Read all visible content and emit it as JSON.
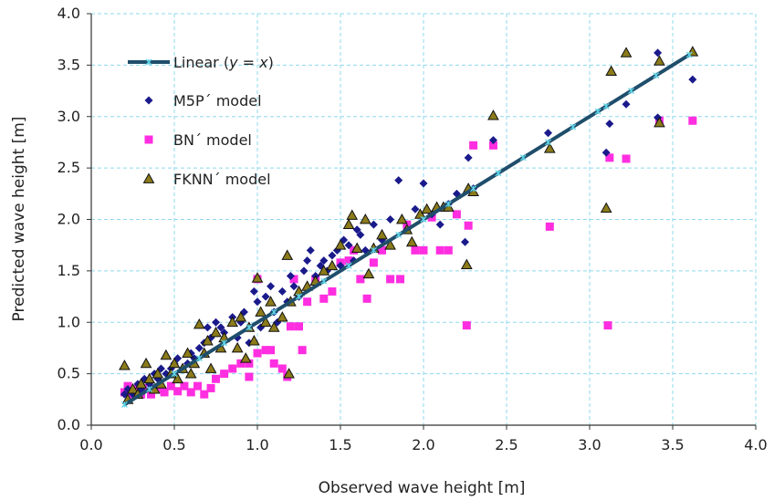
{
  "chart_data": {
    "type": "scatter",
    "title": "",
    "xlabel": "Observed wave height [m]",
    "ylabel": "Predicted wave height [m]",
    "xlim": [
      0.0,
      4.0
    ],
    "ylim": [
      0.0,
      4.0
    ],
    "x_ticks": [
      "0.0",
      "0.5",
      "1.0",
      "1.5",
      "2.0",
      "2.5",
      "3.0",
      "3.5",
      "4.0"
    ],
    "y_ticks": [
      "0.0",
      "0.5",
      "1.0",
      "1.5",
      "2.0",
      "2.5",
      "3.0",
      "3.5",
      "4.0"
    ],
    "grid": true,
    "legend_position": "top-left",
    "series": [
      {
        "name": "Linear (y = x)",
        "name_prefix": "Linear (",
        "name_math": "y = x",
        "name_suffix": ")",
        "kind": "line",
        "color": "#1f4e6b",
        "marker_color": "#5fd3e6",
        "x": [
          0.2,
          3.6
        ],
        "y": [
          0.2,
          3.6
        ],
        "marker_x": [
          0.2,
          0.35,
          0.5,
          0.65,
          0.8,
          0.95,
          1.1,
          1.25,
          1.4,
          1.55,
          1.7,
          1.85,
          2.0,
          2.15,
          2.3,
          2.45,
          2.6,
          2.75,
          2.9,
          3.05,
          3.1,
          3.25,
          3.4,
          3.6
        ]
      },
      {
        "name": "M5P´ model",
        "kind": "scatter",
        "marker": "diamond",
        "color": "#1a1a8c",
        "points": [
          [
            0.2,
            0.3
          ],
          [
            0.22,
            0.35
          ],
          [
            0.25,
            0.3
          ],
          [
            0.28,
            0.4
          ],
          [
            0.3,
            0.35
          ],
          [
            0.32,
            0.45
          ],
          [
            0.35,
            0.4
          ],
          [
            0.38,
            0.5
          ],
          [
            0.4,
            0.45
          ],
          [
            0.42,
            0.55
          ],
          [
            0.45,
            0.5
          ],
          [
            0.48,
            0.55
          ],
          [
            0.5,
            0.6
          ],
          [
            0.52,
            0.65
          ],
          [
            0.55,
            0.55
          ],
          [
            0.58,
            0.6
          ],
          [
            0.6,
            0.7
          ],
          [
            0.62,
            0.65
          ],
          [
            0.65,
            0.75
          ],
          [
            0.68,
            0.8
          ],
          [
            0.7,
            0.95
          ],
          [
            0.72,
            0.85
          ],
          [
            0.75,
            1.0
          ],
          [
            0.78,
            0.95
          ],
          [
            0.8,
            0.9
          ],
          [
            0.85,
            1.05
          ],
          [
            0.88,
            0.85
          ],
          [
            0.9,
            1.0
          ],
          [
            0.92,
            1.1
          ],
          [
            0.95,
            0.8
          ],
          [
            0.98,
            1.3
          ],
          [
            1.0,
            1.2
          ],
          [
            1.02,
            0.95
          ],
          [
            1.05,
            1.25
          ],
          [
            1.08,
            1.35
          ],
          [
            1.1,
            1.1
          ],
          [
            1.12,
            1.0
          ],
          [
            1.15,
            1.3
          ],
          [
            1.18,
            1.2
          ],
          [
            1.2,
            1.45
          ],
          [
            1.22,
            1.35
          ],
          [
            1.25,
            1.25
          ],
          [
            1.28,
            1.5
          ],
          [
            1.3,
            1.6
          ],
          [
            1.32,
            1.7
          ],
          [
            1.35,
            1.45
          ],
          [
            1.38,
            1.55
          ],
          [
            1.4,
            1.6
          ],
          [
            1.42,
            1.5
          ],
          [
            1.45,
            1.65
          ],
          [
            1.48,
            1.7
          ],
          [
            1.5,
            1.55
          ],
          [
            1.52,
            1.8
          ],
          [
            1.55,
            1.75
          ],
          [
            1.58,
            1.6
          ],
          [
            1.6,
            1.9
          ],
          [
            1.62,
            1.85
          ],
          [
            1.65,
            1.7
          ],
          [
            1.7,
            1.95
          ],
          [
            1.75,
            1.8
          ],
          [
            1.8,
            2.0
          ],
          [
            1.85,
            2.38
          ],
          [
            1.9,
            1.9
          ],
          [
            1.95,
            2.1
          ],
          [
            2.0,
            2.35
          ],
          [
            2.05,
            2.05
          ],
          [
            2.1,
            1.95
          ],
          [
            2.15,
            2.15
          ],
          [
            2.2,
            2.25
          ],
          [
            2.25,
            1.78
          ],
          [
            2.27,
            2.6
          ],
          [
            2.3,
            2.3
          ],
          [
            2.42,
            2.77
          ],
          [
            2.75,
            2.84
          ],
          [
            3.1,
            2.65
          ],
          [
            3.12,
            2.93
          ],
          [
            3.22,
            3.12
          ],
          [
            3.41,
            3.62
          ],
          [
            3.41,
            2.99
          ],
          [
            3.62,
            3.36
          ]
        ]
      },
      {
        "name": "BN´ model",
        "kind": "scatter",
        "marker": "square",
        "color": "#ff2ee0",
        "points": [
          [
            0.2,
            0.32
          ],
          [
            0.22,
            0.38
          ],
          [
            0.25,
            0.3
          ],
          [
            0.28,
            0.35
          ],
          [
            0.3,
            0.3
          ],
          [
            0.33,
            0.36
          ],
          [
            0.36,
            0.3
          ],
          [
            0.4,
            0.35
          ],
          [
            0.44,
            0.32
          ],
          [
            0.48,
            0.38
          ],
          [
            0.52,
            0.33
          ],
          [
            0.56,
            0.38
          ],
          [
            0.6,
            0.32
          ],
          [
            0.64,
            0.38
          ],
          [
            0.68,
            0.3
          ],
          [
            0.72,
            0.36
          ],
          [
            0.75,
            0.45
          ],
          [
            0.8,
            0.5
          ],
          [
            0.85,
            0.55
          ],
          [
            0.9,
            0.6
          ],
          [
            0.95,
            0.6
          ],
          [
            1.0,
            0.7
          ],
          [
            1.05,
            0.73
          ],
          [
            1.1,
            0.6
          ],
          [
            1.15,
            0.55
          ],
          [
            1.18,
            0.47
          ],
          [
            1.2,
            0.96
          ],
          [
            1.22,
            1.42
          ],
          [
            1.25,
            0.96
          ],
          [
            1.27,
            0.73
          ],
          [
            1.3,
            1.2
          ],
          [
            1.35,
            1.42
          ],
          [
            1.4,
            1.23
          ],
          [
            1.45,
            1.3
          ],
          [
            1.5,
            1.58
          ],
          [
            1.55,
            1.6
          ],
          [
            1.58,
            1.7
          ],
          [
            1.62,
            1.42
          ],
          [
            1.66,
            1.23
          ],
          [
            1.7,
            1.58
          ],
          [
            1.75,
            1.7
          ],
          [
            1.8,
            1.42
          ],
          [
            1.86,
            1.42
          ],
          [
            1.9,
            1.95
          ],
          [
            1.95,
            1.7
          ],
          [
            2.0,
            1.7
          ],
          [
            2.05,
            2.02
          ],
          [
            2.1,
            1.7
          ],
          [
            2.15,
            1.7
          ],
          [
            2.2,
            2.05
          ],
          [
            2.26,
            0.97
          ],
          [
            2.27,
            1.94
          ],
          [
            2.3,
            2.72
          ],
          [
            2.42,
            2.72
          ],
          [
            2.76,
            1.93
          ],
          [
            3.11,
            0.97
          ],
          [
            3.12,
            2.6
          ],
          [
            3.22,
            2.59
          ],
          [
            3.42,
            2.96
          ],
          [
            3.62,
            2.96
          ],
          [
            0.95,
            0.47
          ],
          [
            1.0,
            1.42
          ],
          [
            1.08,
            0.73
          ]
        ]
      },
      {
        "name": "FKNN´ model",
        "kind": "scatter",
        "marker": "triangle",
        "color": "#8b7b1a",
        "points": [
          [
            0.2,
            0.58
          ],
          [
            0.22,
            0.25
          ],
          [
            0.25,
            0.35
          ],
          [
            0.28,
            0.3
          ],
          [
            0.3,
            0.4
          ],
          [
            0.33,
            0.6
          ],
          [
            0.35,
            0.45
          ],
          [
            0.38,
            0.35
          ],
          [
            0.4,
            0.5
          ],
          [
            0.42,
            0.4
          ],
          [
            0.45,
            0.68
          ],
          [
            0.48,
            0.5
          ],
          [
            0.5,
            0.6
          ],
          [
            0.52,
            0.45
          ],
          [
            0.55,
            0.55
          ],
          [
            0.58,
            0.7
          ],
          [
            0.6,
            0.5
          ],
          [
            0.62,
            0.6
          ],
          [
            0.65,
            0.98
          ],
          [
            0.68,
            0.7
          ],
          [
            0.7,
            0.82
          ],
          [
            0.72,
            0.55
          ],
          [
            0.75,
            0.9
          ],
          [
            0.78,
            0.75
          ],
          [
            0.8,
            0.85
          ],
          [
            0.85,
            1.0
          ],
          [
            0.88,
            0.75
          ],
          [
            0.9,
            1.05
          ],
          [
            0.93,
            0.65
          ],
          [
            0.95,
            0.95
          ],
          [
            0.98,
            0.82
          ],
          [
            1.0,
            1.43
          ],
          [
            1.02,
            1.1
          ],
          [
            1.05,
            1.0
          ],
          [
            1.08,
            1.2
          ],
          [
            1.1,
            0.95
          ],
          [
            1.15,
            1.05
          ],
          [
            1.18,
            1.65
          ],
          [
            1.19,
            0.5
          ],
          [
            1.2,
            1.2
          ],
          [
            1.25,
            1.3
          ],
          [
            1.3,
            1.35
          ],
          [
            1.35,
            1.4
          ],
          [
            1.4,
            1.5
          ],
          [
            1.45,
            1.55
          ],
          [
            1.5,
            1.75
          ],
          [
            1.55,
            1.95
          ],
          [
            1.57,
            2.04
          ],
          [
            1.6,
            1.72
          ],
          [
            1.65,
            2.0
          ],
          [
            1.67,
            1.47
          ],
          [
            1.7,
            1.72
          ],
          [
            1.75,
            1.85
          ],
          [
            1.8,
            1.75
          ],
          [
            1.87,
            2.0
          ],
          [
            1.9,
            1.9
          ],
          [
            1.93,
            1.78
          ],
          [
            1.98,
            2.05
          ],
          [
            2.02,
            2.1
          ],
          [
            2.08,
            2.12
          ],
          [
            2.12,
            2.12
          ],
          [
            2.15,
            2.12
          ],
          [
            2.26,
            1.56
          ],
          [
            2.27,
            2.3
          ],
          [
            2.3,
            2.27
          ],
          [
            2.42,
            3.01
          ],
          [
            2.76,
            2.69
          ],
          [
            3.1,
            2.11
          ],
          [
            3.13,
            3.44
          ],
          [
            3.22,
            3.62
          ],
          [
            3.42,
            3.54
          ],
          [
            3.42,
            2.94
          ],
          [
            3.62,
            3.63
          ]
        ]
      }
    ]
  }
}
